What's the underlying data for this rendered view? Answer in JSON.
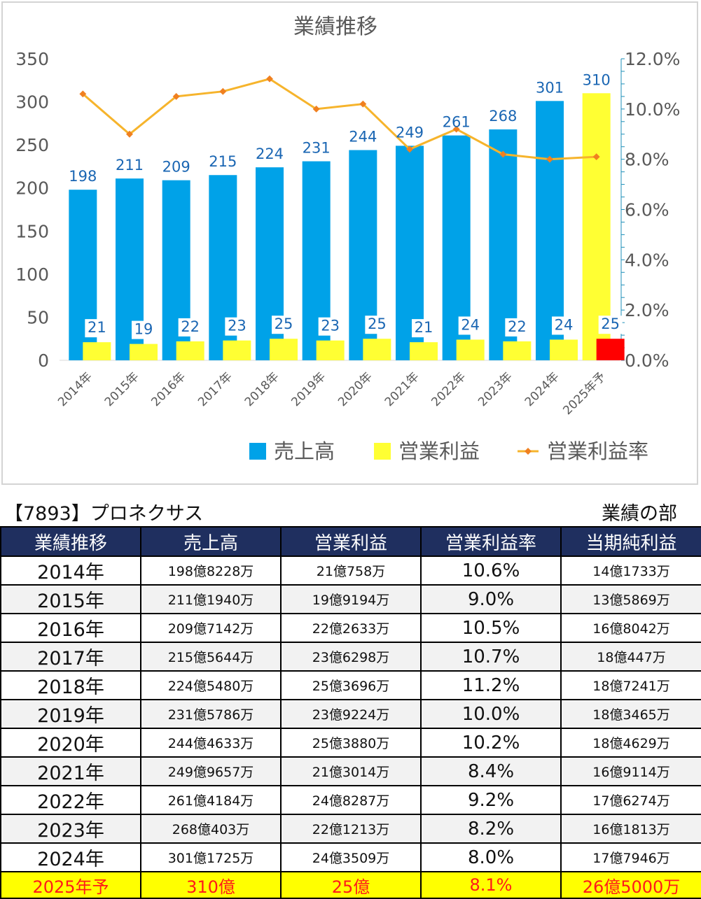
{
  "chart_data": {
    "type": "bar",
    "title": "業績推移",
    "categories": [
      "2014年",
      "2015年",
      "2016年",
      "2017年",
      "2018年",
      "2019年",
      "2020年",
      "2021年",
      "2022年",
      "2023年",
      "2024年",
      "2025年予"
    ],
    "series": [
      {
        "name": "売上高",
        "kind": "bar",
        "axis": "left",
        "color": "#00a2e8",
        "values": [
          198,
          211,
          209,
          215,
          224,
          231,
          244,
          249,
          261,
          268,
          301,
          310
        ],
        "forecast_color": "#ffff33"
      },
      {
        "name": "営業利益",
        "kind": "bar",
        "axis": "left",
        "color": "#ffff33",
        "values": [
          21,
          19,
          22,
          23,
          25,
          23,
          25,
          21,
          24,
          22,
          24,
          25
        ],
        "forecast_color": "#ff0000"
      },
      {
        "name": "営業利益率",
        "kind": "line",
        "axis": "right",
        "color": "#f6b42c",
        "marker_color": "#f08020",
        "values": [
          10.6,
          9.0,
          10.5,
          10.7,
          11.2,
          10.0,
          10.2,
          8.4,
          9.2,
          8.2,
          8.0,
          8.1
        ]
      }
    ],
    "y_left": {
      "min": 0,
      "max": 350,
      "ticks": [
        "0",
        "50",
        "100",
        "150",
        "200",
        "250",
        "300",
        "350"
      ]
    },
    "y_right": {
      "min": 0,
      "max": 12,
      "ticks": [
        "0.0%",
        "2.0%",
        "4.0%",
        "6.0%",
        "8.0%",
        "10.0%",
        "12.0%"
      ]
    },
    "legend": "bottom",
    "grid": false,
    "label_color": "#1a66b3",
    "axis_text_color": "#595959"
  },
  "header": {
    "company": "【7893】プロネクサス",
    "section": "業績の部"
  },
  "table": {
    "columns": [
      "業績推移",
      "売上高",
      "営業利益",
      "営業利益率",
      "当期純利益"
    ],
    "rows": [
      [
        "2014年",
        "198億8228万",
        "21億758万",
        "10.6%",
        "14億1733万"
      ],
      [
        "2015年",
        "211億1940万",
        "19億9194万",
        "9.0%",
        "13億5869万"
      ],
      [
        "2016年",
        "209億7142万",
        "22億2633万",
        "10.5%",
        "16億8042万"
      ],
      [
        "2017年",
        "215億5644万",
        "23億6298万",
        "10.7%",
        "18億447万"
      ],
      [
        "2018年",
        "224億5480万",
        "25億3696万",
        "11.2%",
        "18億7241万"
      ],
      [
        "2019年",
        "231億5786万",
        "23億9224万",
        "10.0%",
        "18億3465万"
      ],
      [
        "2020年",
        "244億4633万",
        "25億3880万",
        "10.2%",
        "18億4629万"
      ],
      [
        "2021年",
        "249億9657万",
        "21億3014万",
        "8.4%",
        "16億9114万"
      ],
      [
        "2022年",
        "261億4184万",
        "24億8287万",
        "9.2%",
        "17億6274万"
      ],
      [
        "2023年",
        "268億403万",
        "22億1213万",
        "8.2%",
        "16億1813万"
      ],
      [
        "2024年",
        "301億1725万",
        "24億3509万",
        "8.0%",
        "17億7946万"
      ],
      [
        "2025年予",
        "310億",
        "25億",
        "8.1%",
        "26億5000万"
      ]
    ],
    "forecast_row_index": 11
  }
}
